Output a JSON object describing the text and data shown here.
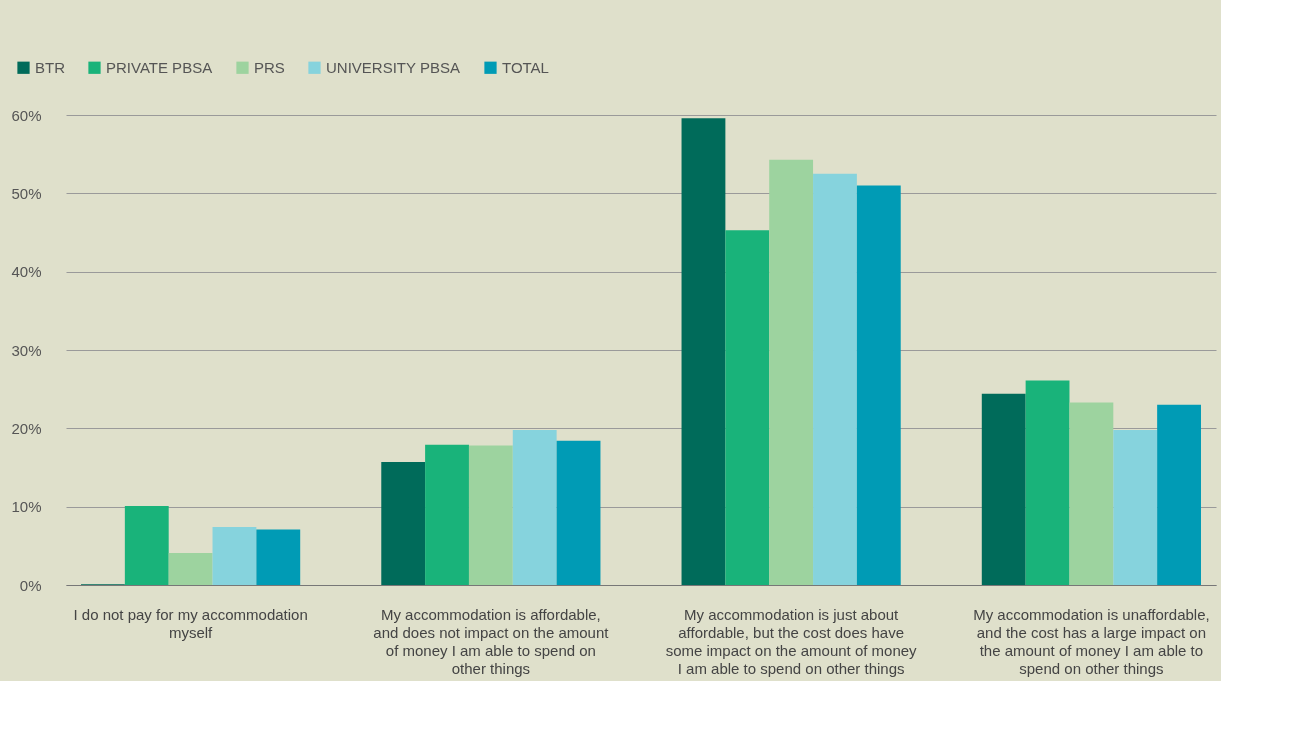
{
  "chart_data": {
    "type": "bar",
    "categories": [
      "I do not pay for my accommodation myself",
      "My accommodation is affordable, and does not impact on the amount of money I am able to spend on other things",
      "My accommodation is just about affordable, but the cost does have some impact on the amount of money I am able to spend on other things",
      "My accommodation is unaffordable, and the cost has a large impact on the amount of money I am able to spend on other things"
    ],
    "series": [
      {
        "name": "BTR",
        "color": "#006b5a",
        "values": [
          0.1,
          15.7,
          59.6,
          24.4
        ]
      },
      {
        "name": "PRIVATE PBSA",
        "color": "#19b37a",
        "values": [
          10.1,
          17.9,
          45.3,
          26.1
        ]
      },
      {
        "name": "PRS",
        "color": "#9dd39f",
        "values": [
          4.1,
          17.8,
          54.3,
          23.3
        ]
      },
      {
        "name": "UNIVERSITY PBSA",
        "color": "#86d3dd",
        "values": [
          7.4,
          19.8,
          52.5,
          19.8
        ]
      },
      {
        "name": "TOTAL",
        "color": "#009bb5",
        "values": [
          7.1,
          18.4,
          51.0,
          23.0
        ]
      }
    ],
    "ylim": [
      0,
      60
    ],
    "yticks": [
      {
        "value": 0,
        "label": "0%"
      },
      {
        "value": 10,
        "label": "10%"
      },
      {
        "value": 20,
        "label": "20%"
      },
      {
        "value": 30,
        "label": "30%"
      },
      {
        "value": 40,
        "label": "40%"
      },
      {
        "value": 50,
        "label": "50%"
      },
      {
        "value": 60,
        "label": "60%"
      }
    ],
    "grid": "y",
    "legend": "top left"
  }
}
